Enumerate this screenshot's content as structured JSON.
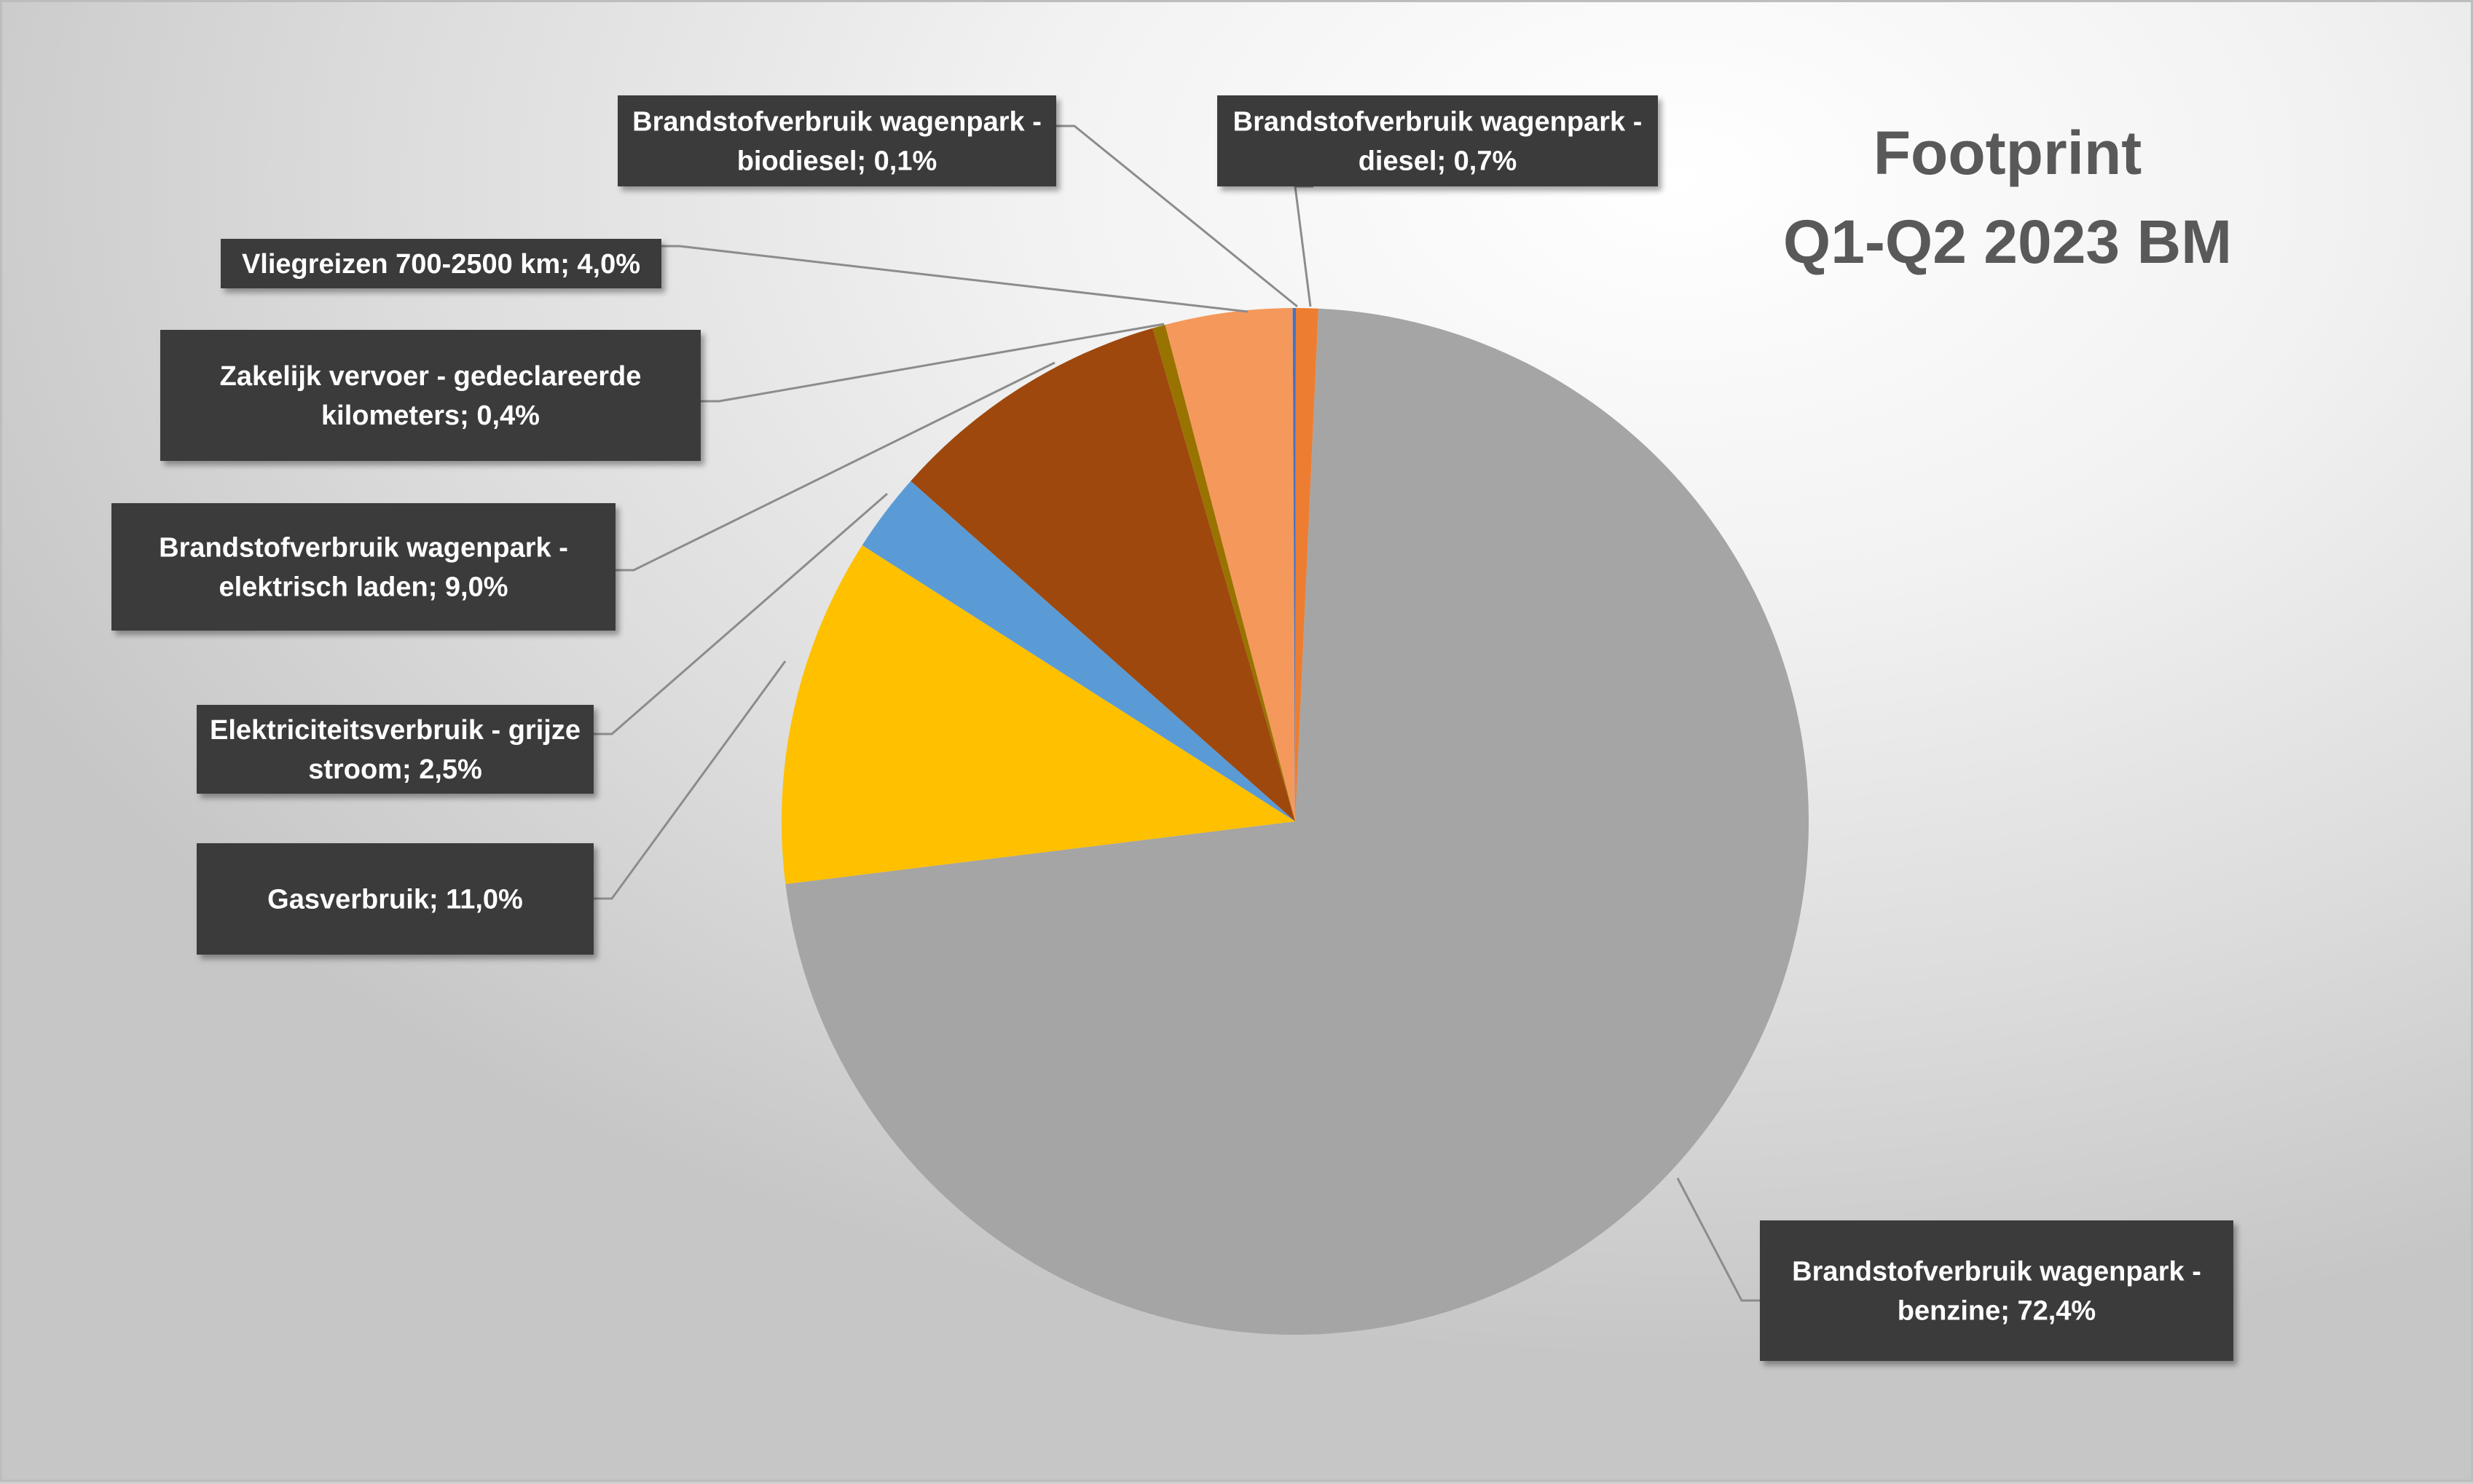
{
  "chart_data": {
    "type": "pie",
    "title": [
      "Footprint",
      "Q1-Q2 2023 BM"
    ],
    "start_angle_deg": 2.6,
    "slices": [
      {
        "name": "Brandstofverbruik wagenpark - benzine",
        "value": 72.4,
        "label_lines": [
          "Brandstofverbruik wagenpark -",
          "benzine; 72,4%"
        ],
        "color": "#a5a5a5"
      },
      {
        "name": "Gasverbruik",
        "value": 11.0,
        "label_lines": [
          "Gasverbruik; 11,0%"
        ],
        "color": "#ffc000"
      },
      {
        "name": "Elektriciteitsverbruik - grijze stroom",
        "value": 2.5,
        "label_lines": [
          "Elektriciteitsverbruik - grijze",
          "stroom; 2,5%"
        ],
        "color": "#5b9bd5"
      },
      {
        "name": "Brandstofverbruik wagenpark - elektrisch laden",
        "value": 9.0,
        "label_lines": [
          "Brandstofverbruik wagenpark -",
          "elektrisch laden; 9,0%"
        ],
        "color": "#9e480e"
      },
      {
        "name": "Zakelijk vervoer - gedeclareerde kilometers",
        "value": 0.4,
        "label_lines": [
          "Zakelijk vervoer - gedeclareerde",
          "kilometers; 0,4%"
        ],
        "color": "#997300"
      },
      {
        "name": "Vliegreizen 700-2500 km",
        "value": 4.0,
        "label_lines": [
          "Vliegreizen 700-2500 km; 4,0%"
        ],
        "color": "#f4995b"
      },
      {
        "name": "Brandstofverbruik wagenpark - biodiesel",
        "value": 0.1,
        "label_lines": [
          "Brandstofverbruik wagenpark -",
          "biodiesel; 0,1%"
        ],
        "color": "#4472c4"
      },
      {
        "name": "Brandstofverbruik wagenpark - diesel",
        "value": 0.7,
        "label_lines": [
          "Brandstofverbruik wagenpark -",
          "diesel; 0,7%"
        ],
        "color": "#ed7d31"
      }
    ]
  }
}
